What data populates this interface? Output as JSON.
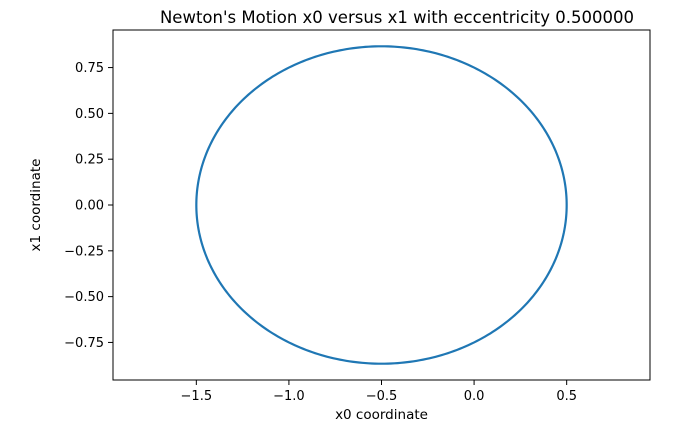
{
  "chart_data": {
    "type": "line",
    "title": "Newton's Motion x0 versus x1 with eccentricity 0.500000",
    "xlabel": "x0 coordinate",
    "ylabel": "x1 coordinate",
    "xlim": [
      -1.95,
      0.95
    ],
    "ylim": [
      -0.955,
      0.955
    ],
    "xticks": [
      -1.5,
      -1.0,
      -0.5,
      0.0,
      0.5
    ],
    "xtick_labels": [
      "−1.5",
      "−1.0",
      "−0.5",
      "0.0",
      "0.5"
    ],
    "yticks": [
      0.75,
      0.5,
      0.25,
      0.0,
      -0.25,
      -0.5,
      -0.75
    ],
    "ytick_labels": [
      "0.75",
      "0.50",
      "0.25",
      "0.00",
      "−0.25",
      "−0.50",
      "−0.75"
    ],
    "grid": false,
    "series": [
      {
        "color": "#1f77b4",
        "orbit": {
          "center_x": -0.5,
          "center_y": 0.0,
          "semi_major_x": 1.0,
          "semi_minor_y": 0.866
        },
        "x": [
          0.5,
          0.366,
          0.0,
          -0.5,
          -1.0,
          -1.366,
          -1.5,
          -1.366,
          -1.0,
          -0.5,
          0.0,
          0.366,
          0.5
        ],
        "y": [
          0.0,
          0.433,
          0.75,
          0.866,
          0.75,
          0.433,
          0.0,
          -0.433,
          -0.75,
          -0.866,
          -0.75,
          -0.433,
          0.0
        ]
      }
    ]
  }
}
